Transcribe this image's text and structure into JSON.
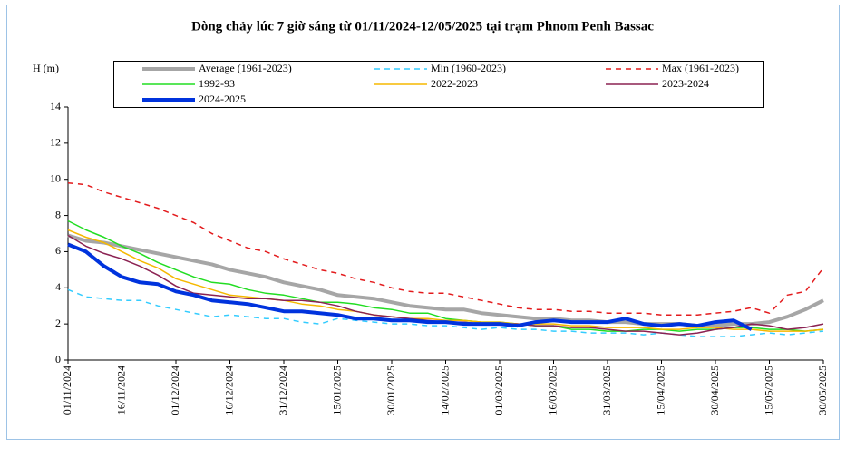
{
  "chart_data": {
    "type": "line",
    "title": "Dòng chảy lúc 7 giờ sáng từ 01/11/2024-12/05/2025 tại trạm Phnom Penh Bassac",
    "y_label": "H (m)",
    "x": [
      "01/11/2024",
      "06/11/2024",
      "11/11/2024",
      "16/11/2024",
      "21/11/2024",
      "26/11/2024",
      "01/12/2024",
      "06/12/2024",
      "11/12/2024",
      "16/12/2024",
      "21/12/2024",
      "26/12/2024",
      "31/12/2024",
      "05/01/2025",
      "10/01/2025",
      "15/01/2025",
      "20/01/2025",
      "25/01/2025",
      "30/01/2025",
      "04/02/2025",
      "09/02/2025",
      "14/02/2025",
      "19/02/2025",
      "24/02/2025",
      "01/03/2025",
      "06/03/2025",
      "11/03/2025",
      "16/03/2025",
      "21/03/2025",
      "26/03/2025",
      "31/03/2025",
      "05/04/2025",
      "10/04/2025",
      "15/04/2025",
      "20/04/2025",
      "25/04/2025",
      "30/04/2025",
      "05/05/2025",
      "10/05/2025",
      "15/05/2025",
      "20/05/2025",
      "25/05/2025",
      "30/05/2025"
    ],
    "xlim": [
      "01/11/2024",
      "30/05/2025"
    ],
    "xticks": [
      "01/11/2024",
      "16/11/2024",
      "01/12/2024",
      "16/12/2024",
      "31/12/2024",
      "15/01/2025",
      "30/01/2025",
      "14/02/2025",
      "01/03/2025",
      "16/03/2025",
      "31/03/2025",
      "15/04/2025",
      "30/04/2025",
      "15/05/2025",
      "30/05/2025"
    ],
    "ylim": [
      0,
      14
    ],
    "yticks": [
      0,
      2,
      4,
      6,
      8,
      10,
      12,
      14
    ],
    "series": [
      {
        "name": "Average (1961-2023)",
        "color": "#a6a6a6",
        "line_weight": "thick",
        "dashed": false,
        "values": [
          6.9,
          6.6,
          6.5,
          6.3,
          6.1,
          5.9,
          5.7,
          5.5,
          5.3,
          5.0,
          4.8,
          4.6,
          4.3,
          4.1,
          3.9,
          3.6,
          3.5,
          3.4,
          3.2,
          3.0,
          2.9,
          2.8,
          2.8,
          2.6,
          2.5,
          2.4,
          2.3,
          2.3,
          2.2,
          2.2,
          2.1,
          2.1,
          2.0,
          2.0,
          2.0,
          1.9,
          1.9,
          2.0,
          2.0,
          2.1,
          2.4,
          2.8,
          3.3
        ]
      },
      {
        "name": "Min (1960-2023)",
        "color": "#33ccff",
        "line_weight": "normal",
        "dashed": true,
        "values": [
          3.9,
          3.5,
          3.4,
          3.3,
          3.3,
          3.0,
          2.8,
          2.6,
          2.4,
          2.5,
          2.4,
          2.3,
          2.3,
          2.1,
          2.0,
          2.3,
          2.2,
          2.1,
          2.0,
          2.0,
          1.9,
          1.9,
          1.8,
          1.7,
          1.8,
          1.7,
          1.7,
          1.6,
          1.6,
          1.5,
          1.5,
          1.5,
          1.4,
          1.5,
          1.4,
          1.3,
          1.3,
          1.3,
          1.4,
          1.5,
          1.4,
          1.5,
          1.6
        ]
      },
      {
        "name": "Max (1961-2023)",
        "color": "#e31a1c",
        "line_weight": "normal",
        "dashed": true,
        "values": [
          9.8,
          9.7,
          9.3,
          9.0,
          8.7,
          8.4,
          8.0,
          7.6,
          7.0,
          6.6,
          6.2,
          6.0,
          5.6,
          5.3,
          5.0,
          4.8,
          4.5,
          4.3,
          4.0,
          3.8,
          3.7,
          3.7,
          3.5,
          3.3,
          3.1,
          2.9,
          2.8,
          2.8,
          2.7,
          2.7,
          2.6,
          2.6,
          2.6,
          2.5,
          2.5,
          2.5,
          2.6,
          2.7,
          2.9,
          2.6,
          3.6,
          3.8,
          5.1
        ]
      },
      {
        "name": "1992-93",
        "color": "#22dd22",
        "line_weight": "normal",
        "dashed": false,
        "values": [
          7.7,
          7.2,
          6.8,
          6.3,
          5.9,
          5.4,
          5.0,
          4.6,
          4.3,
          4.2,
          3.9,
          3.7,
          3.6,
          3.4,
          3.2,
          3.2,
          3.1,
          2.9,
          2.8,
          2.6,
          2.6,
          2.3,
          2.2,
          2.1,
          2.1,
          2.0,
          1.9,
          1.9,
          1.7,
          1.7,
          1.6,
          1.6,
          1.7,
          1.7,
          1.6,
          1.7,
          1.7,
          1.8,
          1.8,
          1.7,
          1.7,
          1.6,
          1.7
        ]
      },
      {
        "name": "2022-2023",
        "color": "#f5b800",
        "line_weight": "normal",
        "dashed": false,
        "values": [
          7.2,
          6.8,
          6.5,
          6.0,
          5.5,
          5.1,
          4.5,
          4.2,
          3.9,
          3.6,
          3.5,
          3.4,
          3.3,
          3.1,
          3.0,
          2.8,
          2.7,
          2.5,
          2.4,
          2.3,
          2.3,
          2.2,
          2.2,
          2.1,
          2.1,
          2.0,
          2.0,
          2.0,
          1.9,
          1.9,
          1.8,
          1.8,
          1.8,
          1.7,
          1.7,
          1.8,
          1.8,
          1.7,
          1.7,
          1.6,
          1.6,
          1.6,
          1.7
        ]
      },
      {
        "name": "2023-2024",
        "color": "#8b2252",
        "line_weight": "normal",
        "dashed": false,
        "values": [
          6.9,
          6.3,
          5.9,
          5.6,
          5.2,
          4.7,
          4.1,
          3.7,
          3.6,
          3.5,
          3.4,
          3.4,
          3.3,
          3.3,
          3.2,
          3.0,
          2.7,
          2.5,
          2.4,
          2.3,
          2.2,
          2.1,
          2.1,
          2.0,
          2.0,
          2.0,
          1.9,
          1.9,
          1.8,
          1.8,
          1.7,
          1.6,
          1.6,
          1.5,
          1.4,
          1.5,
          1.7,
          1.8,
          2.0,
          1.9,
          1.7,
          1.8,
          2.0
        ]
      },
      {
        "name": "2024-2025",
        "color": "#0033dd",
        "line_weight": "thick",
        "dashed": false,
        "values": [
          6.4,
          6.0,
          5.2,
          4.6,
          4.3,
          4.2,
          3.8,
          3.6,
          3.3,
          3.2,
          3.1,
          2.9,
          2.7,
          2.7,
          2.6,
          2.5,
          2.3,
          2.3,
          2.2,
          2.2,
          2.1,
          2.1,
          2.0,
          2.0,
          2.0,
          1.9,
          2.1,
          2.2,
          2.1,
          2.1,
          2.1,
          2.3,
          2.0,
          1.9,
          2.0,
          1.9,
          2.1,
          2.2,
          1.7,
          null,
          null,
          null,
          null
        ]
      }
    ]
  }
}
